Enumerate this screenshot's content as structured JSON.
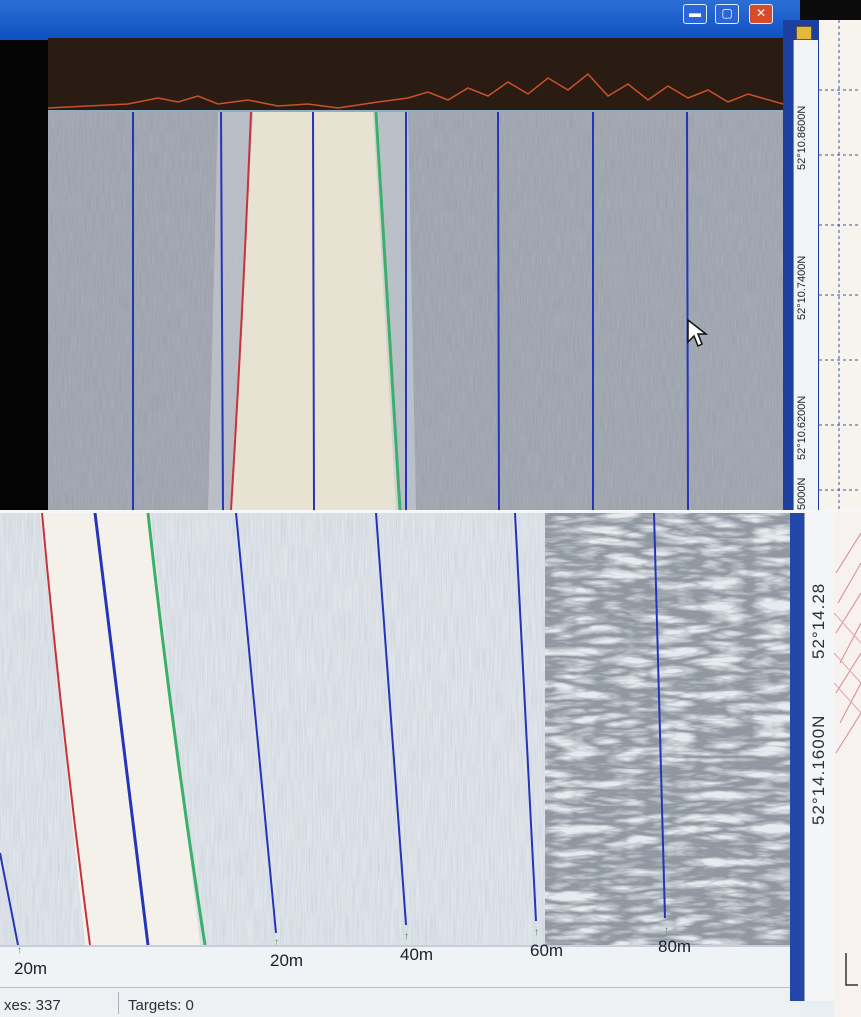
{
  "top_view": {
    "title": "",
    "window_buttons": {
      "minimize": "▬",
      "maximize": "▢",
      "close": "✕"
    },
    "latitude_labels": [
      "52°10.8600N",
      "52°10.7400N",
      "52°10.6200N",
      "5000N"
    ],
    "cursor_icon": "arrow-cursor-icon"
  },
  "bottom_view": {
    "latitude_labels": [
      "52°14.28",
      "52°14.1600N"
    ],
    "range_labels": [
      "20m",
      "20m",
      "40m",
      "60m",
      "80m"
    ],
    "status": {
      "fixes": "xes: 337",
      "targets": "Targets: 0"
    }
  },
  "colors": {
    "port_line": "#c8323a",
    "range_line": "#2436b8",
    "starboard_line": "#3bb06a",
    "window_title": "#1553c9"
  }
}
